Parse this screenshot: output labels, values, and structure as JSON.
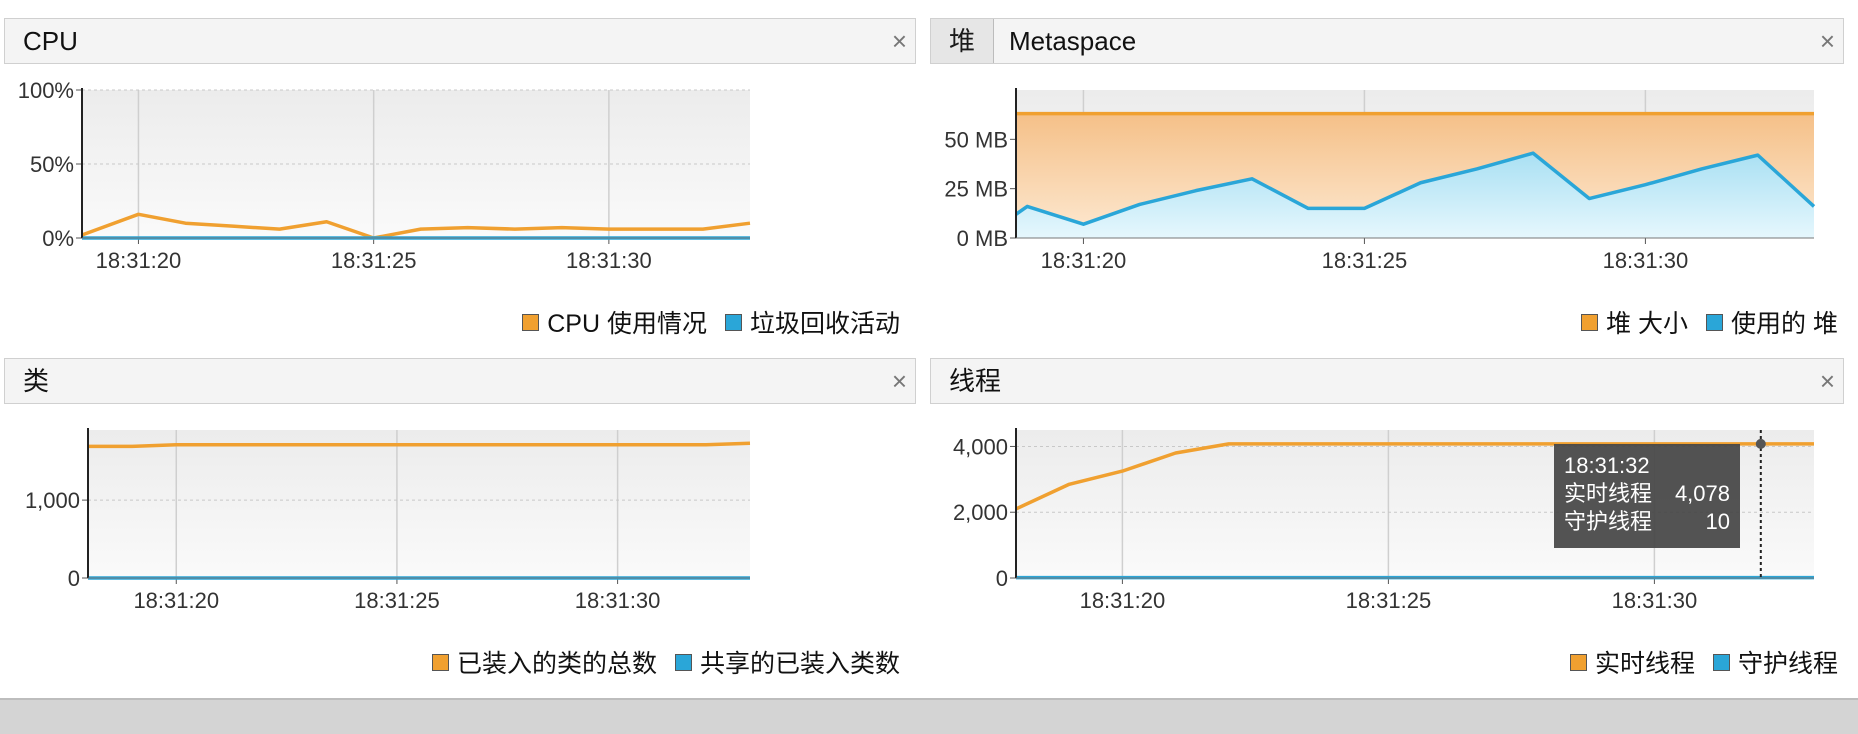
{
  "colors": {
    "orange": "#f0a030",
    "blue": "#2aa6d8"
  },
  "panels": {
    "cpu": {
      "title": "CPU",
      "close": "×",
      "legend": [
        "CPU 使用情况",
        "垃圾回收活动"
      ]
    },
    "heap": {
      "tab": "堆",
      "title": "Metaspace",
      "close": "×",
      "legend": [
        "堆 大小",
        "使用的 堆"
      ]
    },
    "classes": {
      "title": "类",
      "close": "×",
      "legend": [
        "已装入的类的总数",
        "共享的已装入类数"
      ]
    },
    "threads": {
      "title": "线程",
      "close": "×",
      "legend": [
        "实时线程",
        "守护线程"
      ],
      "tooltip": {
        "time": "18:31:32",
        "rows": [
          {
            "label": "实时线程",
            "value": "4,078"
          },
          {
            "label": "守护线程",
            "value": "10"
          }
        ]
      }
    }
  },
  "chart_data": [
    {
      "type": "line",
      "x": [
        "18:31:18.8",
        "18:31:20",
        "18:31:21",
        "18:31:22",
        "18:31:23",
        "18:31:24",
        "18:31:25",
        "18:31:26",
        "18:31:27",
        "18:31:28",
        "18:31:29",
        "18:31:30",
        "18:31:31",
        "18:31:32",
        "18:31:33"
      ],
      "xticks": [
        "18:31:20",
        "18:31:25",
        "18:31:30"
      ],
      "ylim": [
        0,
        100
      ],
      "yticks": [
        "0%",
        "50%",
        "100%"
      ],
      "series": [
        {
          "name": "CPU 使用情况",
          "values": [
            2,
            16,
            10,
            8,
            6,
            11,
            0,
            6,
            7,
            6,
            7,
            6,
            6,
            6,
            10
          ]
        },
        {
          "name": "垃圾回收活动",
          "values": [
            0,
            0,
            0,
            0,
            0,
            0,
            0,
            0,
            0,
            0,
            0,
            0,
            0,
            0,
            0
          ]
        }
      ]
    },
    {
      "type": "area",
      "x": [
        "18:31:18.8",
        "18:31:19",
        "18:31:20",
        "18:31:21",
        "18:31:22",
        "18:31:23",
        "18:31:24",
        "18:31:25",
        "18:31:26",
        "18:31:27",
        "18:31:28",
        "18:31:29",
        "18:31:30",
        "18:31:31",
        "18:31:32",
        "18:31:33"
      ],
      "xticks": [
        "18:31:20",
        "18:31:25",
        "18:31:30"
      ],
      "ylim": [
        0,
        75
      ],
      "yticks": [
        "0 MB",
        "25 MB",
        "50 MB"
      ],
      "series": [
        {
          "name": "堆 大小",
          "values": [
            63,
            63,
            63,
            63,
            63,
            63,
            63,
            63,
            63,
            63,
            63,
            63,
            63,
            63,
            63,
            63
          ]
        },
        {
          "name": "使用的 堆",
          "values": [
            12,
            16,
            7,
            17,
            24,
            30,
            15,
            15,
            28,
            35,
            43,
            20,
            27,
            35,
            42,
            16
          ]
        }
      ]
    },
    {
      "type": "line",
      "x": [
        "18:31:18",
        "18:31:19",
        "18:31:20",
        "18:31:21",
        "18:31:22",
        "18:31:23",
        "18:31:24",
        "18:31:25",
        "18:31:26",
        "18:31:27",
        "18:31:28",
        "18:31:29",
        "18:31:30",
        "18:31:31",
        "18:31:32",
        "18:31:33"
      ],
      "xticks": [
        "18:31:20",
        "18:31:25",
        "18:31:30"
      ],
      "ylim": [
        0,
        1900
      ],
      "yticks": [
        "0",
        "1,000"
      ],
      "series": [
        {
          "name": "已装入的类的总数",
          "values": [
            1690,
            1690,
            1710,
            1710,
            1710,
            1710,
            1710,
            1710,
            1710,
            1710,
            1710,
            1710,
            1710,
            1710,
            1710,
            1730
          ]
        },
        {
          "name": "共享的已装入类数",
          "values": [
            0,
            0,
            0,
            0,
            0,
            0,
            0,
            0,
            0,
            0,
            0,
            0,
            0,
            0,
            0,
            0
          ]
        }
      ]
    },
    {
      "type": "line",
      "x": [
        "18:31:18",
        "18:31:19",
        "18:31:20",
        "18:31:21",
        "18:31:22",
        "18:31:23",
        "18:31:24",
        "18:31:25",
        "18:31:26",
        "18:31:27",
        "18:31:28",
        "18:31:29",
        "18:31:30",
        "18:31:31",
        "18:31:32",
        "18:31:33"
      ],
      "xticks": [
        "18:31:20",
        "18:31:25",
        "18:31:30"
      ],
      "ylim": [
        0,
        4500
      ],
      "yticks": [
        "0",
        "2,000",
        "4,000"
      ],
      "series": [
        {
          "name": "实时线程",
          "values": [
            2100,
            2850,
            3250,
            3800,
            4078,
            4078,
            4078,
            4078,
            4078,
            4078,
            4078,
            4078,
            4078,
            4078,
            4078,
            4078
          ]
        },
        {
          "name": "守护线程",
          "values": [
            10,
            10,
            10,
            10,
            10,
            10,
            10,
            10,
            10,
            10,
            10,
            10,
            10,
            10,
            10,
            10
          ]
        }
      ]
    }
  ]
}
